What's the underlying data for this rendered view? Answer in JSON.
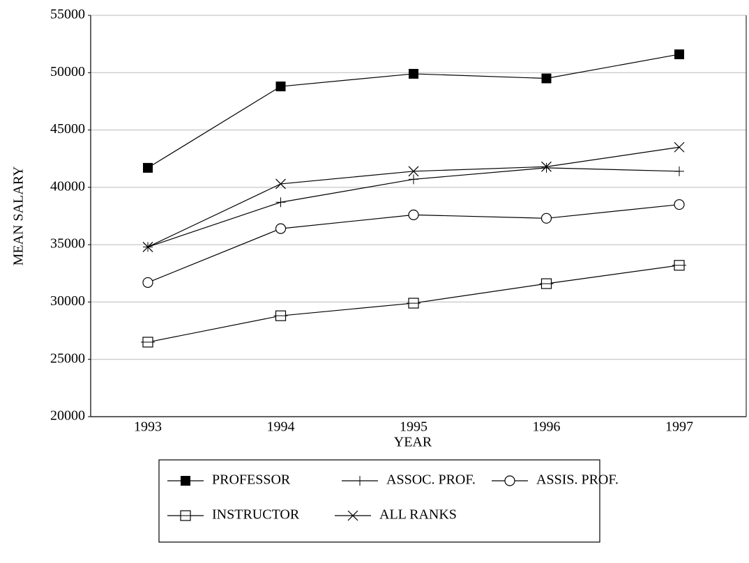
{
  "chart_data": {
    "type": "line",
    "x_label": "YEAR",
    "y_label": "MEAN SALARY",
    "categories": [
      "1993",
      "1994",
      "1995",
      "1996",
      "1997"
    ],
    "series": [
      {
        "name": "PROFESSOR",
        "color": "#000000",
        "marker": "square-filled",
        "values": [
          41700,
          48800,
          49900,
          49500,
          51600
        ]
      },
      {
        "name": "ASSOC. PROF.",
        "color": "#000000",
        "marker": "plus",
        "values": [
          34800,
          38700,
          40700,
          41700,
          41400
        ]
      },
      {
        "name": "ASSIS. PROF.",
        "color": "#000000",
        "marker": "circle",
        "values": [
          31700,
          36400,
          37600,
          37300,
          38500
        ]
      },
      {
        "name": "INSTRUCTOR",
        "color": "#000000",
        "marker": "square-line",
        "values": [
          26500,
          28800,
          29900,
          31600,
          33200
        ]
      },
      {
        "name": "ALL RANKS",
        "color": "#000000",
        "marker": "x",
        "values": [
          34800,
          40300,
          41400,
          41800,
          43500
        ]
      }
    ],
    "ylim": [
      20000,
      55000
    ],
    "yticks": [
      20000,
      25000,
      30000,
      35000,
      40000,
      45000,
      50000,
      55000
    ],
    "grid": true
  }
}
